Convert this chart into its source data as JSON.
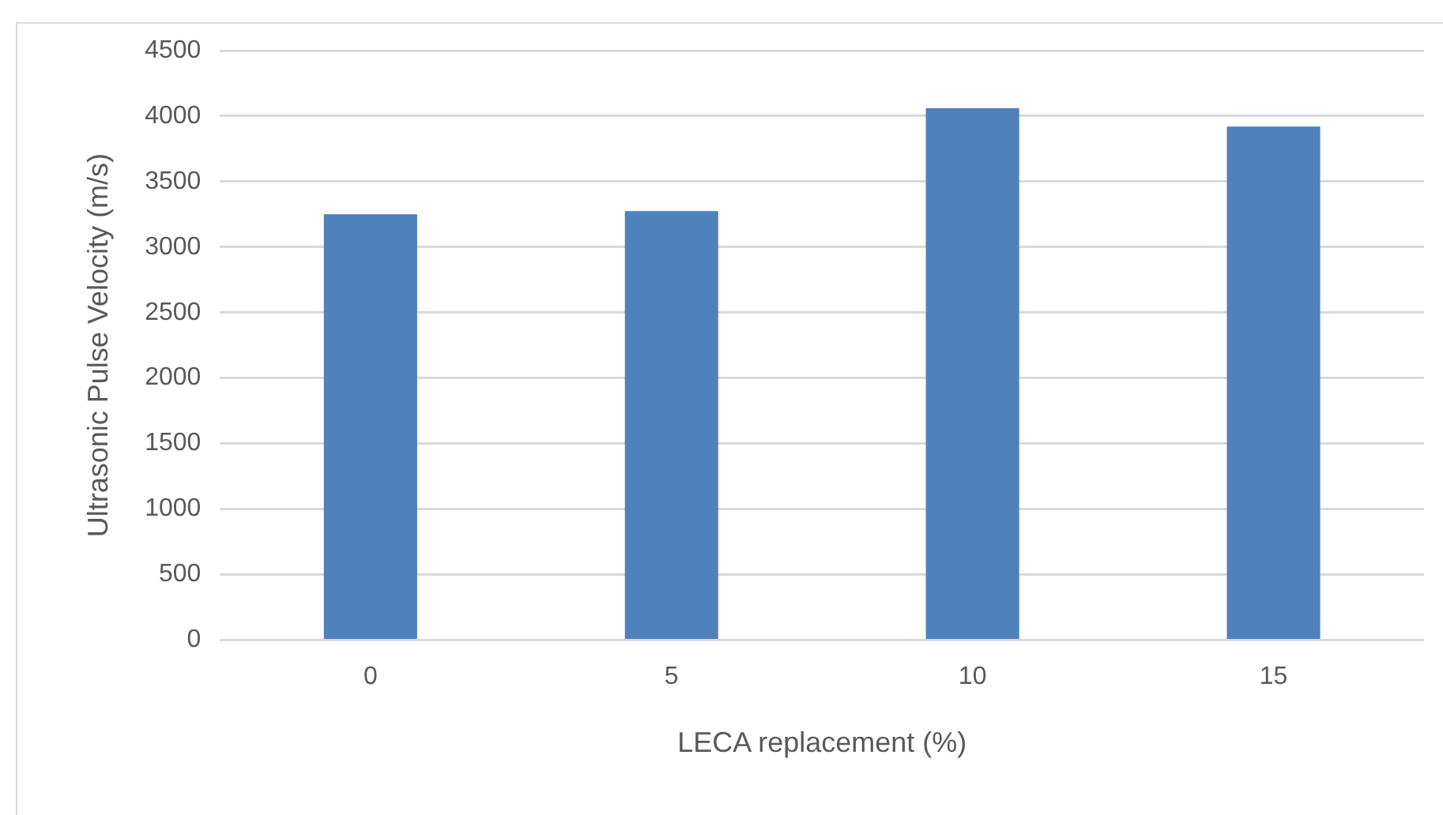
{
  "chart_data": {
    "type": "bar",
    "xlabel": "LECA replacement (%)",
    "ylabel": "Ultrasonic Pulse Velocity (m/s)",
    "categories": [
      "0",
      "5",
      "10",
      "15"
    ],
    "values": [
      3250,
      3275,
      4060,
      3920
    ],
    "color": "#4f81bd",
    "ylim": [
      0,
      4500
    ],
    "yticks": [
      0,
      500,
      1000,
      1500,
      2000,
      2500,
      3000,
      3500,
      4000,
      4500
    ],
    "grid": "y",
    "legend": false
  }
}
